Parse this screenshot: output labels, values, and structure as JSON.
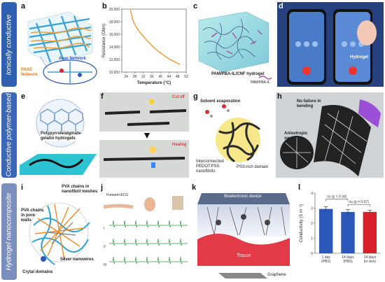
{
  "rows": [
    {
      "id": "a",
      "band_label": "Ionically conductive",
      "band_color": "#2f5fb0"
    },
    {
      "id": "b",
      "band_label": "Conductive polymer-based",
      "band_color": "#3c67b7"
    },
    {
      "id": "c",
      "band_label": "Hydrogel nanocomposite",
      "band_color": "#7a8fbd"
    }
  ],
  "panels": {
    "a": {
      "letter": "a",
      "labels": [
        "Agar Network",
        "PAAE Network"
      ]
    },
    "b": {
      "letter": "b"
    },
    "c": {
      "letter": "c",
      "caption": "PAM/PBA-IL/CNF hydrogel",
      "legend": "PAM/PBA-IL"
    },
    "d": {
      "letter": "d",
      "caption": "Hydrogel"
    },
    "e": {
      "letter": "e",
      "caption": "Polypyrrole/alginate-gelatin hydrogels"
    },
    "f": {
      "letter": "f",
      "cut_label": "Cut off",
      "heal_label": "Healing"
    },
    "g": {
      "letter": "g",
      "evap": "Solvent evaporation",
      "interconnect": "Interconnected PEDOT:PSS nanofibrils",
      "pss": "PSS-rich domain"
    },
    "h": {
      "letter": "h",
      "nofail": "No failure in bending",
      "aniso": "Anisotropic swelling"
    },
    "i": {
      "letter": "i",
      "pore": "PVA chains in pore walls",
      "mesh": "PVA chains in nanofibril meshes",
      "silver": "Silver nanowires",
      "crystal": "Crytal domains"
    },
    "j": {
      "letter": "j",
      "title": "Forearm ECG",
      "traces": [
        "I",
        "II",
        "III"
      ]
    },
    "k": {
      "letter": "k",
      "device": "Bioelectronic device",
      "tissue": "Tissue",
      "graphene": "Graphene"
    },
    "l": {
      "letter": "l"
    }
  },
  "chart_data": [
    {
      "type": "line",
      "xlabel": "Temperature (°C)",
      "ylabel": "Resistance (Ohm)",
      "xlim": [
        22,
        52
      ],
      "ylim": [
        10000,
        20000
      ],
      "xticks": [
        "24",
        "28",
        "32",
        "36",
        "40",
        "44",
        "48",
        "52"
      ],
      "yticks": [
        "10,000",
        "12,000",
        "14,000",
        "16,000",
        "18,000",
        "20,000"
      ],
      "x": [
        26,
        27,
        28,
        29,
        30,
        31,
        32,
        33,
        34,
        35,
        36,
        37,
        38,
        39,
        40,
        41,
        42,
        43,
        44,
        45,
        46,
        47,
        48,
        49
      ],
      "y": [
        19900,
        18400,
        17600,
        17000,
        16500,
        16100,
        15700,
        15300,
        14900,
        14600,
        14200,
        13900,
        13600,
        13300,
        13050,
        12800,
        12550,
        12300,
        12100,
        11900,
        11750,
        11550,
        11400,
        11250
      ],
      "color": "#f0962e"
    },
    {
      "type": "bar",
      "ylabel": "Conductivity (S m⁻¹)",
      "ylim": [
        0,
        4
      ],
      "yticks": [
        "0",
        "1",
        "2",
        "3",
        "4"
      ],
      "categories": [
        "1 day (PBS)",
        "14 days (PBS)",
        "14 days (in vivo)"
      ],
      "values": [
        2.95,
        2.75,
        2.75
      ],
      "errors": [
        0.15,
        0.15,
        0.1
      ],
      "colors": [
        "#2a57b8",
        "#2a57b8",
        "#d8202a"
      ],
      "annotations": [
        "ns (p = 0.34)",
        "ns (p = 0.97)"
      ]
    }
  ]
}
